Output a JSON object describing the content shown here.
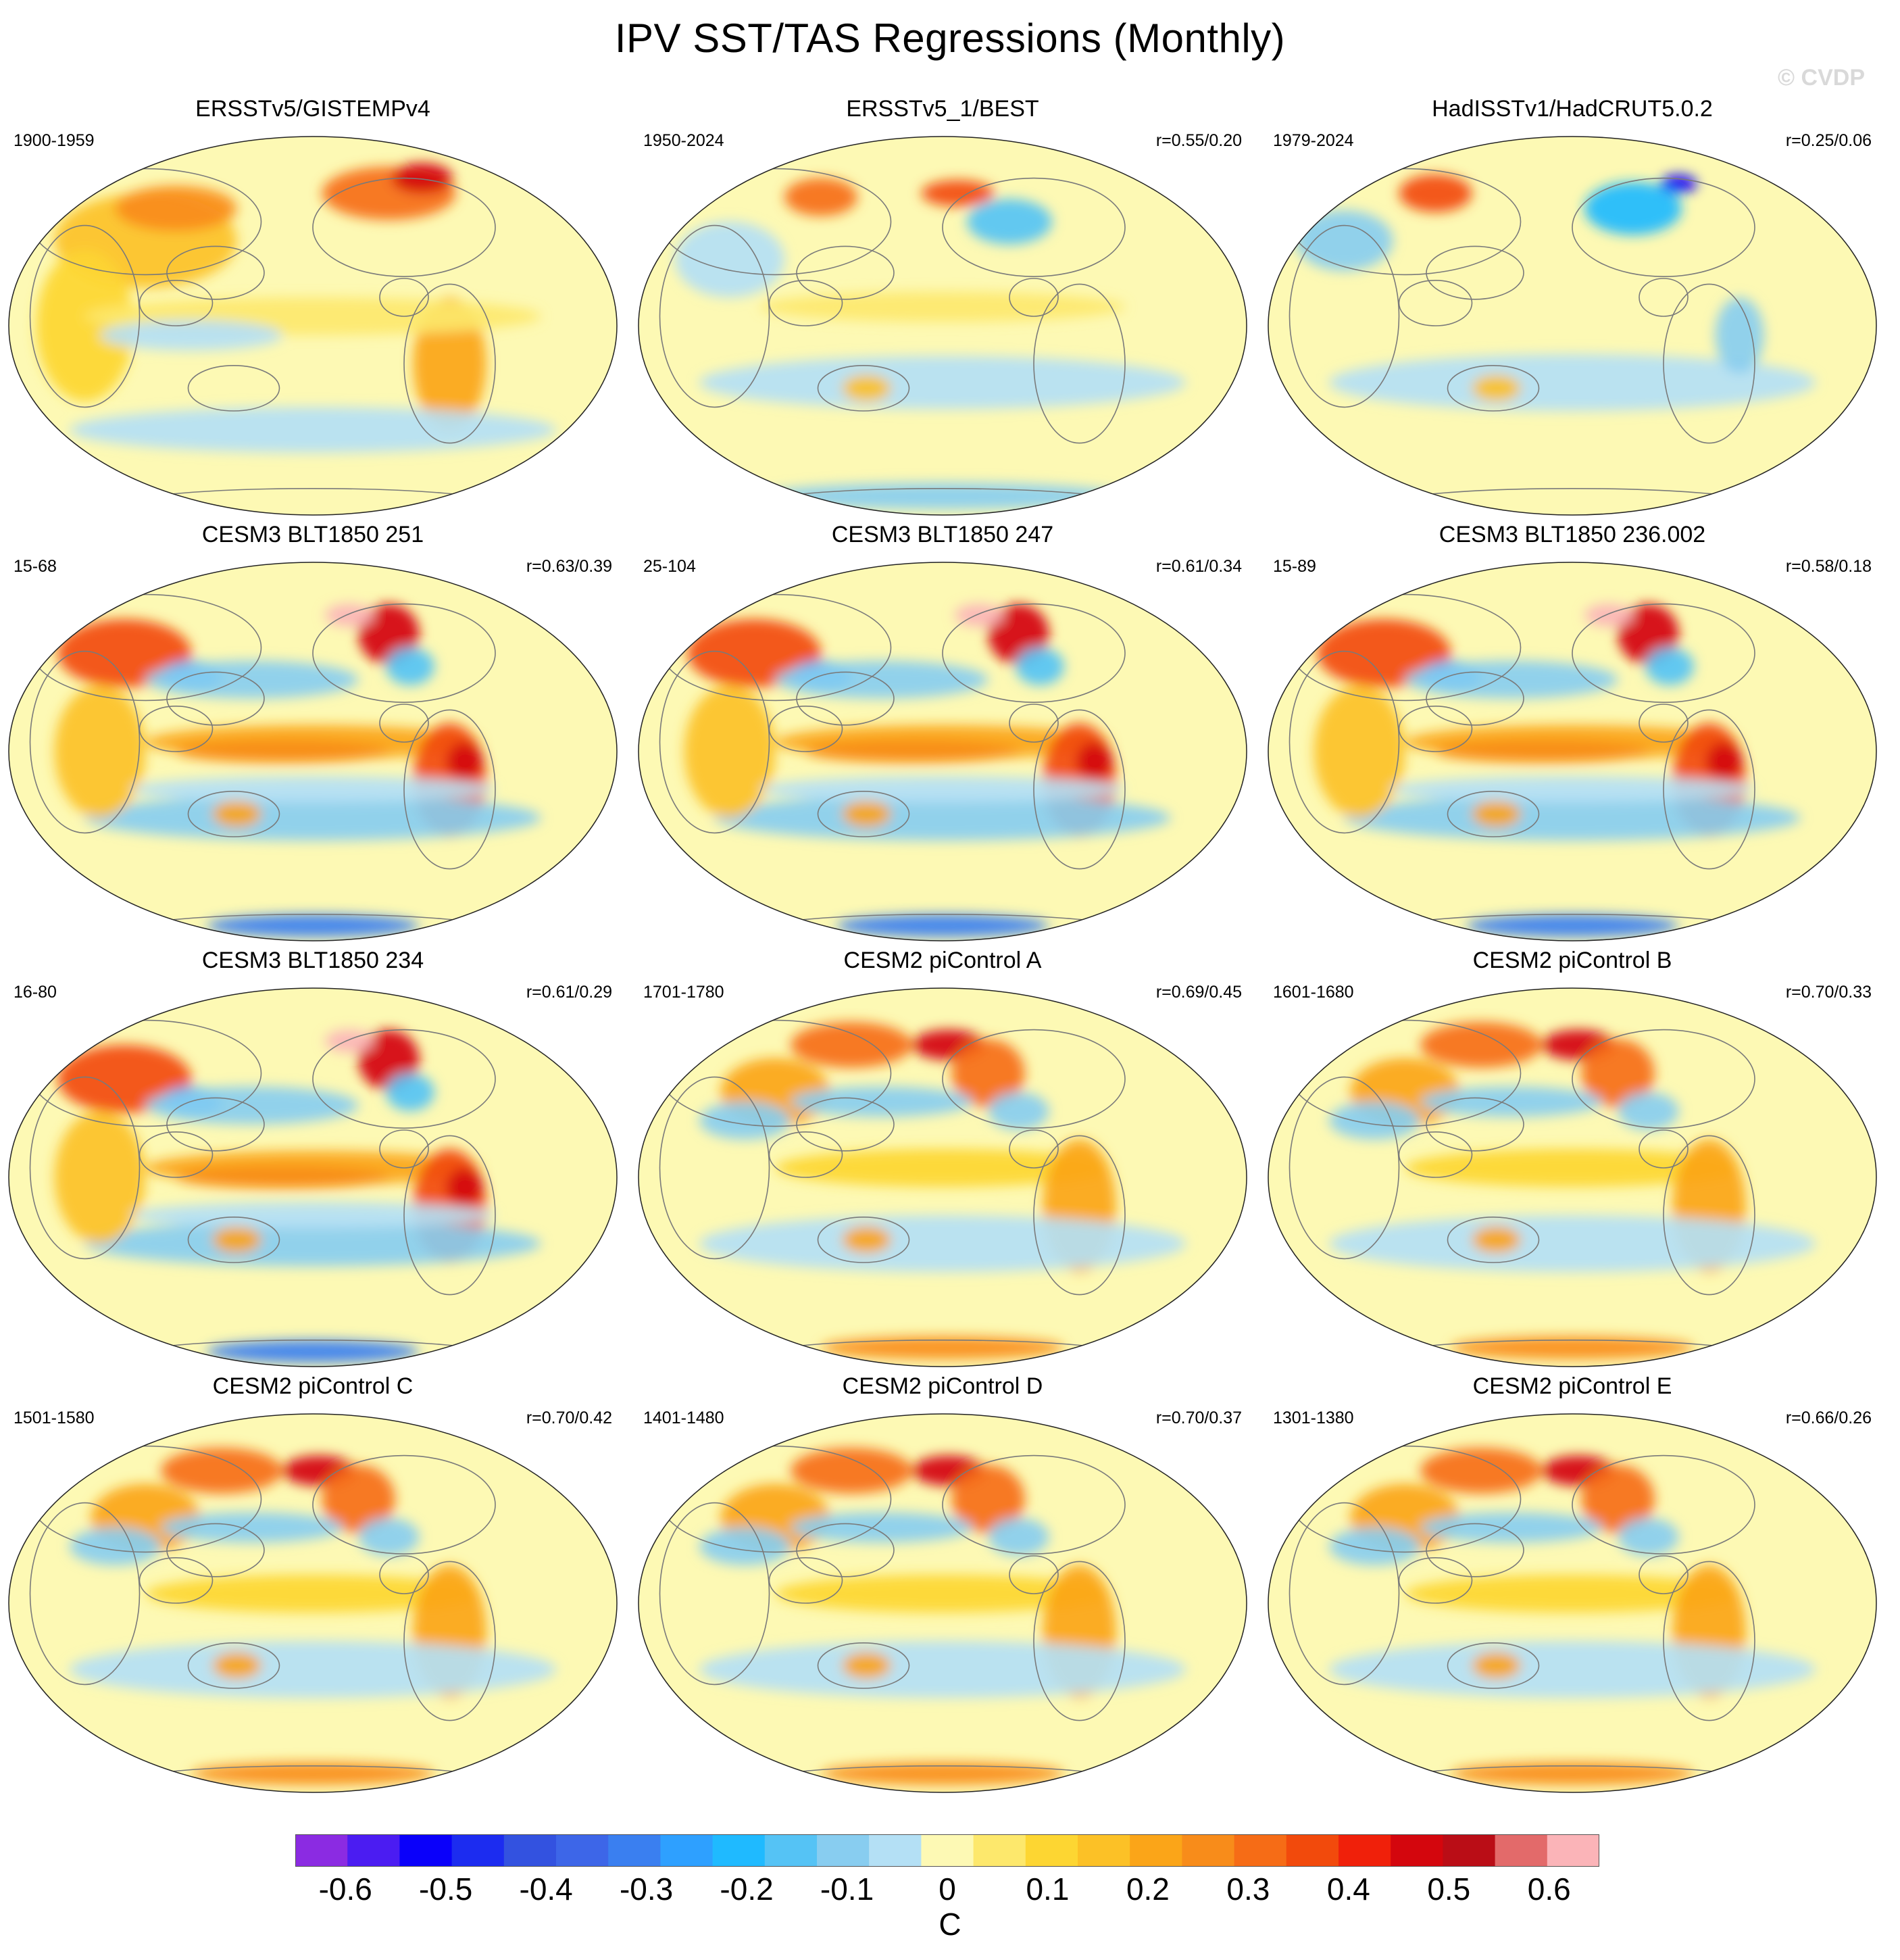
{
  "title": "IPV SST/TAS Regressions (Monthly)",
  "watermark": "© CVDP",
  "units": "C",
  "palette": [
    "#8b2be2",
    "#4b1cf2",
    "#0a00fa",
    "#1c2cf0",
    "#3352e0",
    "#3d66e8",
    "#3a7ff0",
    "#2ea0ff",
    "#1fbaff",
    "#55c3f5",
    "#88cdf0",
    "#b4e0f5",
    "#fdf9b4",
    "#fde86c",
    "#fdd632",
    "#fcc126",
    "#fba518",
    "#f88c1a",
    "#f66c16",
    "#f24a0c",
    "#f0200a",
    "#d4060d",
    "#ba0d16",
    "#e36a6a",
    "#fbb4b8"
  ],
  "colorbar": {
    "levels": [
      -0.65,
      -0.6,
      -0.55,
      -0.5,
      -0.45,
      -0.4,
      -0.35,
      -0.3,
      -0.25,
      -0.2,
      -0.15,
      -0.1,
      -0.05,
      0,
      0.05,
      0.1,
      0.15,
      0.2,
      0.25,
      0.3,
      0.35,
      0.4,
      0.45,
      0.5,
      0.55,
      0.6,
      0.65
    ],
    "labels": [
      "-0.6",
      "-0.5",
      "-0.4",
      "-0.3",
      "-0.2",
      "-0.1",
      "0",
      "0.1",
      "0.2",
      "0.3",
      "0.4",
      "0.5",
      "0.6"
    ]
  },
  "panels": [
    {
      "title": "ERSSTv5/GISTEMPv4",
      "period": "1900-1959",
      "corr": "",
      "pattern": "obs1"
    },
    {
      "title": "ERSSTv5_1/BEST",
      "period": "1950-2024",
      "corr": "r=0.55/0.20",
      "pattern": "obs2"
    },
    {
      "title": "HadISSTv1/HadCRUT5.0.2",
      "period": "1979-2024",
      "corr": "r=0.25/0.06",
      "pattern": "obs3"
    },
    {
      "title": "CESM3 BLT1850 251",
      "period": "15-68",
      "corr": "r=0.63/0.39",
      "pattern": "strong"
    },
    {
      "title": "CESM3 BLT1850 247",
      "period": "25-104",
      "corr": "r=0.61/0.34",
      "pattern": "strong"
    },
    {
      "title": "CESM3 BLT1850 236.002",
      "period": "15-89",
      "corr": "r=0.58/0.18",
      "pattern": "strong"
    },
    {
      "title": "CESM3 BLT1850 234",
      "period": "16-80",
      "corr": "r=0.61/0.29",
      "pattern": "strong"
    },
    {
      "title": "CESM2 piControl A",
      "period": "1701-1780",
      "corr": "r=0.69/0.45",
      "pattern": "cesm2"
    },
    {
      "title": "CESM2 piControl B",
      "period": "1601-1680",
      "corr": "r=0.70/0.33",
      "pattern": "cesm2"
    },
    {
      "title": "CESM2 piControl C",
      "period": "1501-1580",
      "corr": "r=0.70/0.42",
      "pattern": "cesm2"
    },
    {
      "title": "CESM2 piControl D",
      "period": "1401-1480",
      "corr": "r=0.70/0.37",
      "pattern": "cesm2"
    },
    {
      "title": "CESM2 piControl E",
      "period": "1301-1380",
      "corr": "r=0.66/0.26",
      "pattern": "cesm2"
    }
  ]
}
